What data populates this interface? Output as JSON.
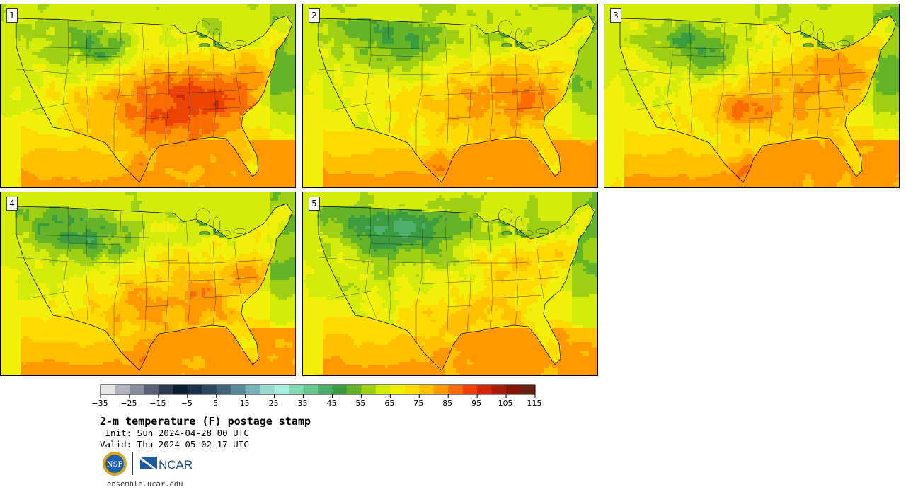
{
  "panels": [
    {
      "label": "1",
      "variant": 0
    },
    {
      "label": "2",
      "variant": 1
    },
    {
      "label": "3",
      "variant": 2
    },
    {
      "label": "4",
      "variant": 3
    },
    {
      "label": "5",
      "variant": 4
    }
  ],
  "colorbar": {
    "colors": [
      "#e6e6e6",
      "#b4b4c0",
      "#8c8ca0",
      "#5a6078",
      "#2c3850",
      "#0c1c30",
      "#1c3048",
      "#2c4860",
      "#406478",
      "#5a8a98",
      "#78b4b8",
      "#9ad8d0",
      "#aaf0e0",
      "#84dcb4",
      "#68c890",
      "#4cb06c",
      "#3c9c40",
      "#64b428",
      "#a0d014",
      "#d4ec0c",
      "#f0f008",
      "#ffdc00",
      "#ffc000",
      "#ff9800",
      "#f86c00",
      "#ec4400",
      "#d02800",
      "#a81c0c",
      "#881408",
      "#642010"
    ],
    "tick_labels": [
      "−35",
      "−25",
      "−15",
      "−5",
      "5",
      "15",
      "25",
      "35",
      "45",
      "55",
      "65",
      "75",
      "85",
      "95",
      "105",
      "115"
    ]
  },
  "title": "2-m temperature (F) postage stamp",
  "init_line": " Init: Sun 2024-04-28 00 UTC",
  "valid_line": "Valid: Thu 2024-05-02 17 UTC",
  "logos": {
    "nsf": "NSF",
    "ncar": "NCAR"
  },
  "url": "ensemble.ucar.edu"
}
